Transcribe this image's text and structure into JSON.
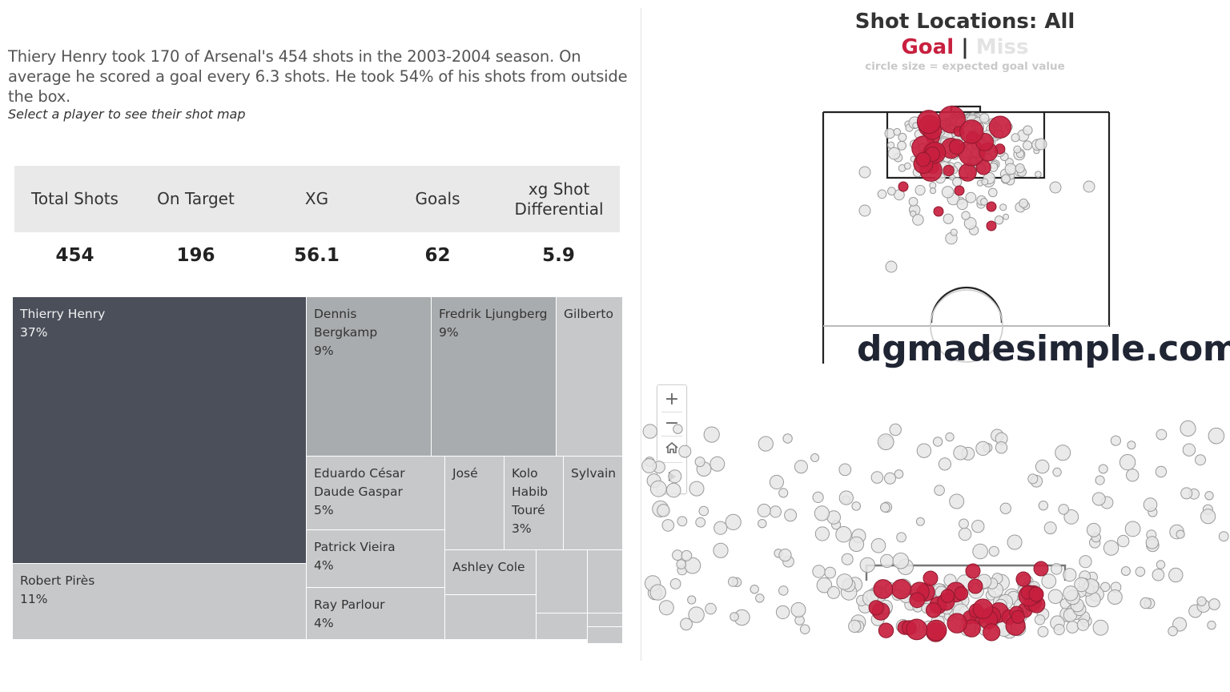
{
  "summary": {
    "text": "Thiery Henry took 170 of Arsenal's 454 shots in the 2003-2004 season. On average he scored a goal every 6.3 shots. He took 54% of his shots from outside the box.",
    "hint": "Select a player to see their shot map"
  },
  "kpis": {
    "headers": [
      "Total Shots",
      "On Target",
      "XG",
      "Goals",
      "xg Shot Differential"
    ],
    "values": [
      "454",
      "196",
      "56.1",
      "62",
      "5.9"
    ]
  },
  "treemap": {
    "tiles": [
      {
        "name": "Thierry Henry",
        "pct": "37%"
      },
      {
        "name": "Robert Pirès",
        "pct": "11%"
      },
      {
        "name": "Dennis Bergkamp",
        "pct": "9%"
      },
      {
        "name": "Fredrik Ljungberg",
        "pct": "9%"
      },
      {
        "name": "Gilberto",
        "pct": ""
      },
      {
        "name": "Eduardo César Daude Gaspar",
        "pct": "5%"
      },
      {
        "name": "José",
        "pct": ""
      },
      {
        "name": "Kolo Habib Touré",
        "pct": "3%"
      },
      {
        "name": "Sylvain",
        "pct": ""
      },
      {
        "name": "Patrick Vieira",
        "pct": "4%"
      },
      {
        "name": "Ashley Cole",
        "pct": ""
      },
      {
        "name": "Ray Parlour",
        "pct": "4%"
      }
    ]
  },
  "shotmap": {
    "title": "Shot Locations: All",
    "legend_goal": "Goal",
    "legend_sep": "|",
    "legend_miss": "Miss",
    "note": "circle size = expected goal value",
    "goal_color": "#c8203f",
    "miss_color": "#e6e6e6"
  },
  "zoom": {
    "plus_icon": "+",
    "minus_icon": "−",
    "home_icon": "home-icon",
    "play_icon": "play-icon"
  },
  "watermark": "dgmadesimple.com"
}
